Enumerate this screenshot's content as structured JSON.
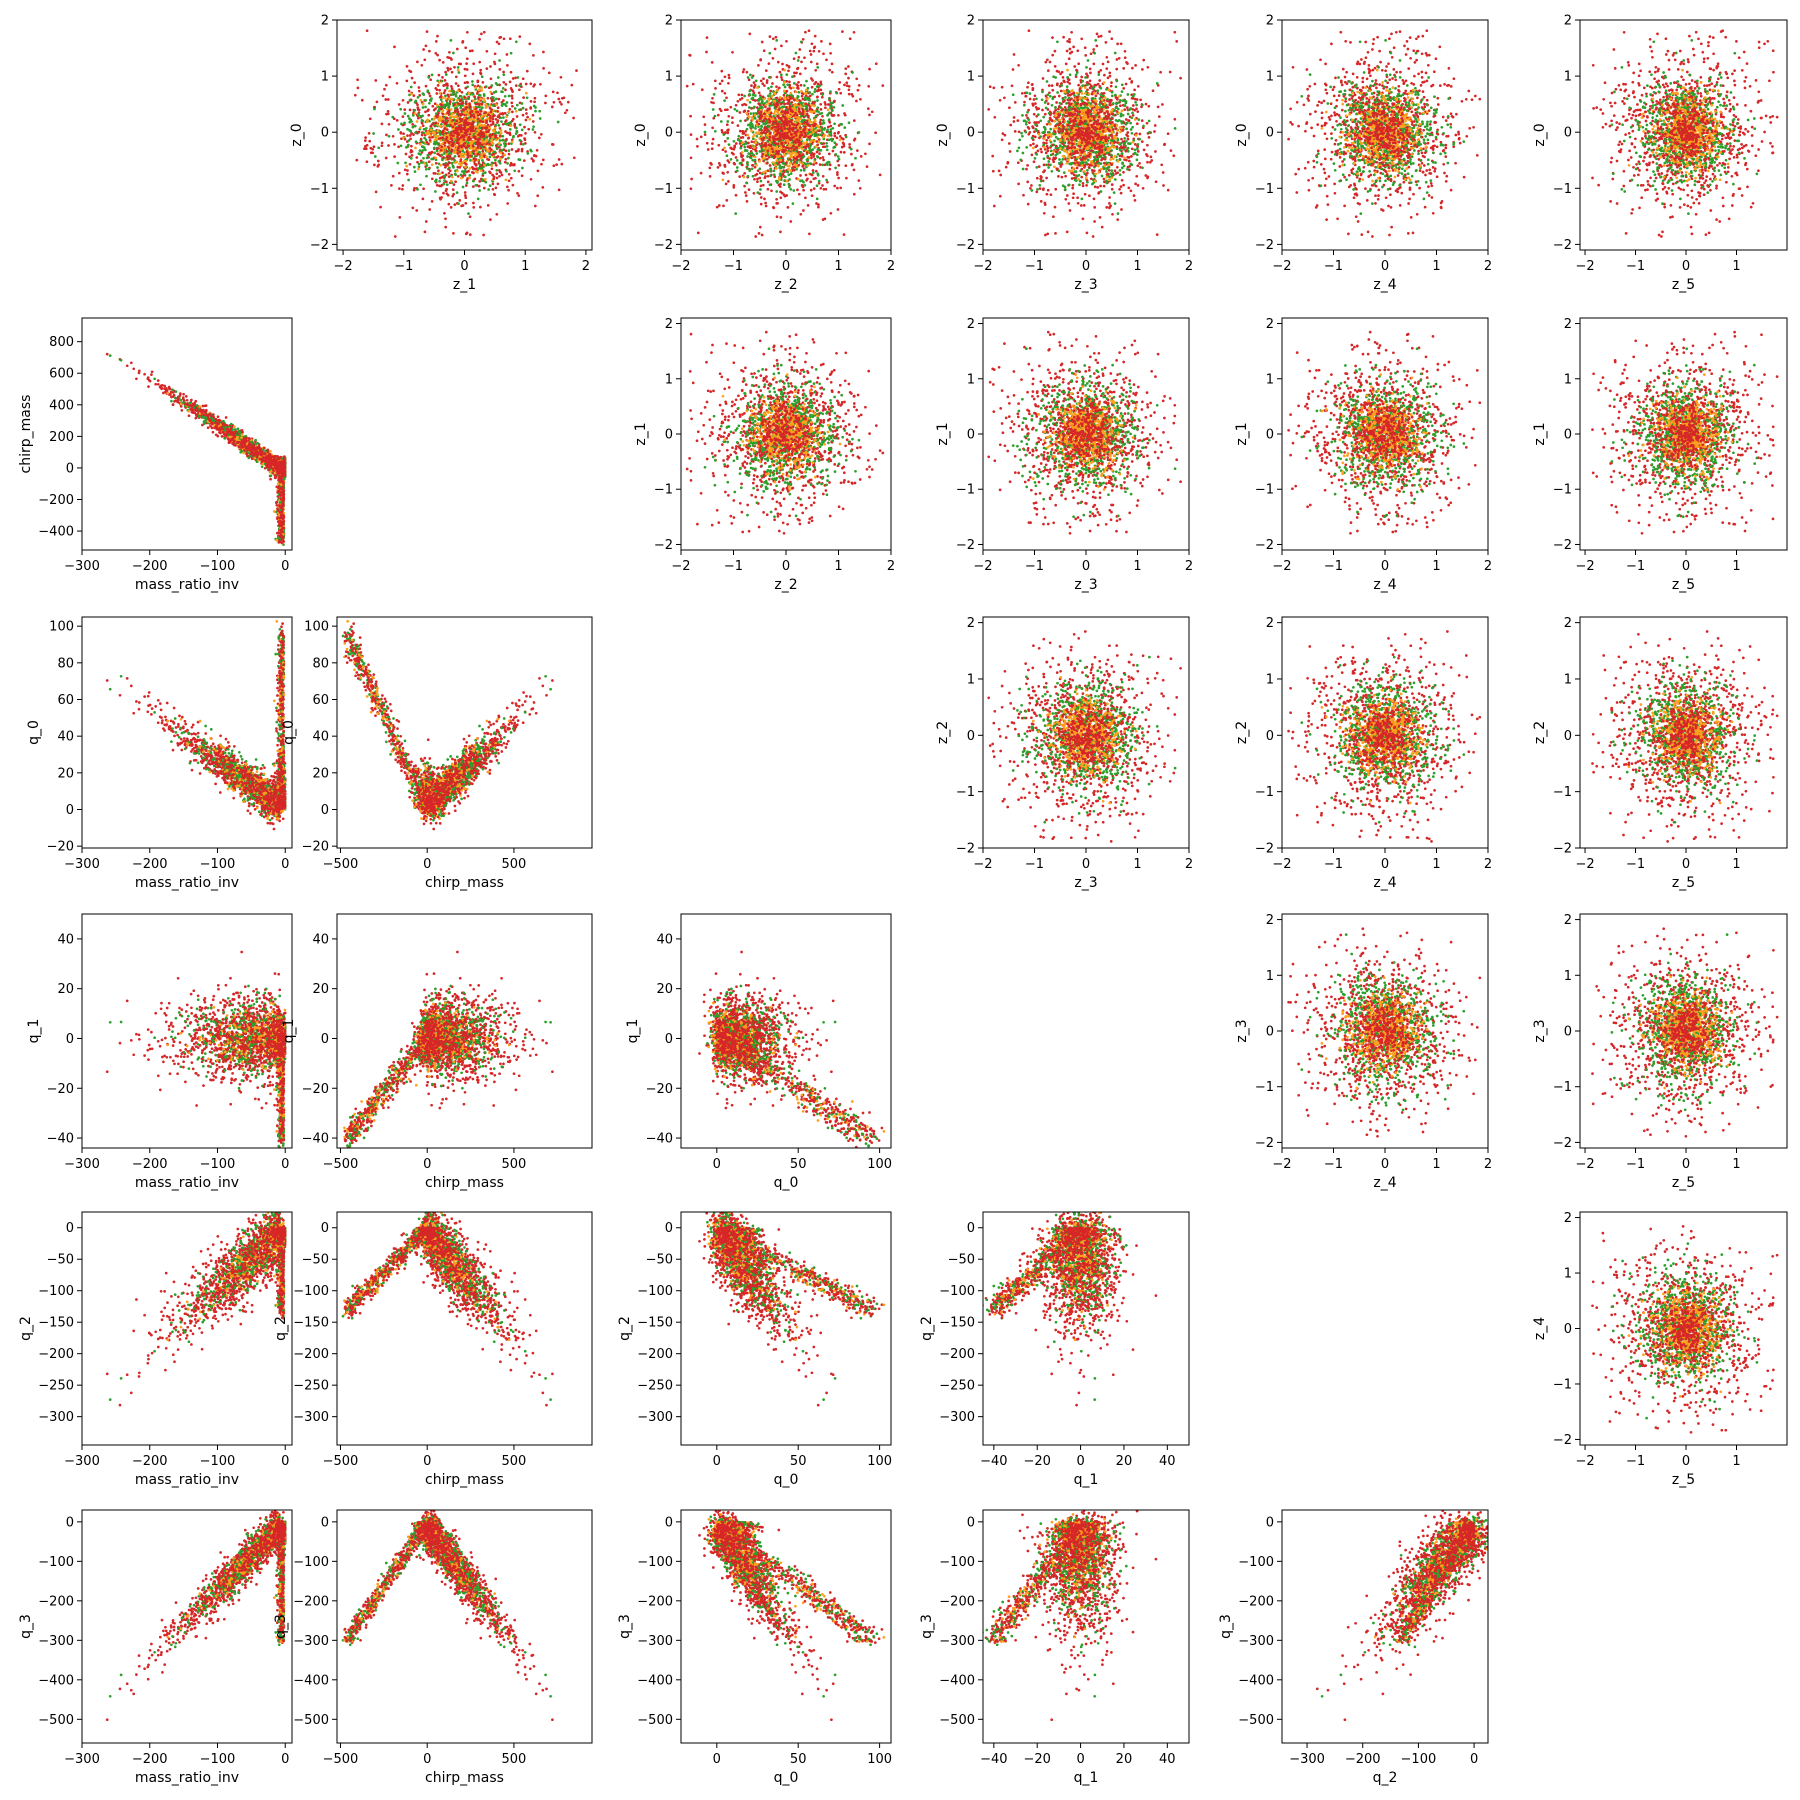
{
  "colors": {
    "scatter_a": "#d62728",
    "scatter_b": "#2ca02c",
    "scatter_c": "#ff9f1c",
    "frame": "#000000",
    "background": "#ffffff"
  },
  "chart_data": [
    {
      "type": "scatter",
      "xlabel": "z_1",
      "ylabel": "z_0",
      "xlim": [
        -2.1,
        2.1
      ],
      "ylim": [
        -2.1,
        2.0
      ],
      "xticks": [
        -2,
        -1,
        0,
        1,
        2
      ],
      "yticks": [
        -2,
        -1,
        0,
        1,
        2
      ]
    },
    {
      "type": "scatter",
      "xlabel": "z_2",
      "ylabel": "z_0",
      "xlim": [
        -2.0,
        2.0
      ],
      "ylim": [
        -2.1,
        2.0
      ],
      "xticks": [
        -2,
        -1,
        0,
        1,
        2
      ],
      "yticks": [
        -2,
        -1,
        0,
        1,
        2
      ]
    },
    {
      "type": "scatter",
      "xlabel": "z_3",
      "ylabel": "z_0",
      "xlim": [
        -2.0,
        2.0
      ],
      "ylim": [
        -2.1,
        2.0
      ],
      "xticks": [
        -2,
        -1,
        0,
        1,
        2
      ],
      "yticks": [
        -2,
        -1,
        0,
        1,
        2
      ]
    },
    {
      "type": "scatter",
      "xlabel": "z_4",
      "ylabel": "z_0",
      "xlim": [
        -2.0,
        2.0
      ],
      "ylim": [
        -2.1,
        2.0
      ],
      "xticks": [
        -2,
        -1,
        0,
        1,
        2
      ],
      "yticks": [
        -2,
        -1,
        0,
        1,
        2
      ]
    },
    {
      "type": "scatter",
      "xlabel": "z_5",
      "ylabel": "z_0",
      "xlim": [
        -2.1,
        2.0
      ],
      "ylim": [
        -2.1,
        2.0
      ],
      "xticks": [
        -2,
        -1,
        0,
        1
      ],
      "yticks": [
        -2,
        -1,
        0,
        1,
        2
      ]
    },
    {
      "type": "scatter",
      "xlabel": "mass_ratio_inv",
      "ylabel": "chirp_mass",
      "xlim": [
        -300,
        10
      ],
      "ylim": [
        -520,
        950
      ],
      "xticks": [
        -300,
        -200,
        -100,
        0
      ],
      "yticks": [
        -400,
        -200,
        0,
        200,
        400,
        600,
        800
      ]
    },
    {
      "type": "scatter",
      "xlabel": "z_2",
      "ylabel": "z_1",
      "xlim": [
        -2.0,
        2.0
      ],
      "ylim": [
        -2.1,
        2.1
      ],
      "xticks": [
        -2,
        -1,
        0,
        1,
        2
      ],
      "yticks": [
        -2,
        -1,
        0,
        1,
        2
      ]
    },
    {
      "type": "scatter",
      "xlabel": "z_3",
      "ylabel": "z_1",
      "xlim": [
        -2.0,
        2.0
      ],
      "ylim": [
        -2.1,
        2.1
      ],
      "xticks": [
        -2,
        -1,
        0,
        1,
        2
      ],
      "yticks": [
        -2,
        -1,
        0,
        1,
        2
      ]
    },
    {
      "type": "scatter",
      "xlabel": "z_4",
      "ylabel": "z_1",
      "xlim": [
        -2.0,
        2.0
      ],
      "ylim": [
        -2.1,
        2.1
      ],
      "xticks": [
        -2,
        -1,
        0,
        1,
        2
      ],
      "yticks": [
        -2,
        -1,
        0,
        1,
        2
      ]
    },
    {
      "type": "scatter",
      "xlabel": "z_5",
      "ylabel": "z_1",
      "xlim": [
        -2.1,
        2.0
      ],
      "ylim": [
        -2.1,
        2.1
      ],
      "xticks": [
        -2,
        -1,
        0,
        1
      ],
      "yticks": [
        -2,
        -1,
        0,
        1,
        2
      ]
    },
    {
      "type": "scatter",
      "xlabel": "mass_ratio_inv",
      "ylabel": "q_0",
      "xlim": [
        -300,
        10
      ],
      "ylim": [
        -21,
        105
      ],
      "xticks": [
        -300,
        -200,
        -100,
        0
      ],
      "yticks": [
        -20,
        0,
        20,
        40,
        60,
        80,
        100
      ]
    },
    {
      "type": "scatter",
      "xlabel": "chirp_mass",
      "ylabel": "q_0",
      "xlim": [
        -520,
        950
      ],
      "ylim": [
        -21,
        105
      ],
      "xticks": [
        -500,
        0,
        500
      ],
      "yticks": [
        -20,
        0,
        20,
        40,
        60,
        80,
        100
      ]
    },
    {
      "type": "scatter",
      "xlabel": "z_3",
      "ylabel": "z_2",
      "xlim": [
        -2.0,
        2.0
      ],
      "ylim": [
        -2.0,
        2.1
      ],
      "xticks": [
        -2,
        -1,
        0,
        1,
        2
      ],
      "yticks": [
        -2,
        -1,
        0,
        1,
        2
      ]
    },
    {
      "type": "scatter",
      "xlabel": "z_4",
      "ylabel": "z_2",
      "xlim": [
        -2.0,
        2.0
      ],
      "ylim": [
        -2.0,
        2.1
      ],
      "xticks": [
        -2,
        -1,
        0,
        1,
        2
      ],
      "yticks": [
        -2,
        -1,
        0,
        1,
        2
      ]
    },
    {
      "type": "scatter",
      "xlabel": "z_5",
      "ylabel": "z_2",
      "xlim": [
        -2.1,
        2.0
      ],
      "ylim": [
        -2.0,
        2.1
      ],
      "xticks": [
        -2,
        -1,
        0,
        1
      ],
      "yticks": [
        -2,
        -1,
        0,
        1,
        2
      ]
    },
    {
      "type": "scatter",
      "xlabel": "mass_ratio_inv",
      "ylabel": "q_1",
      "xlim": [
        -300,
        10
      ],
      "ylim": [
        -44,
        50
      ],
      "xticks": [
        -300,
        -200,
        -100,
        0
      ],
      "yticks": [
        -40,
        -20,
        0,
        20,
        40
      ]
    },
    {
      "type": "scatter",
      "xlabel": "chirp_mass",
      "ylabel": "q_1",
      "xlim": [
        -520,
        950
      ],
      "ylim": [
        -44,
        50
      ],
      "xticks": [
        -500,
        0,
        500
      ],
      "yticks": [
        -40,
        -20,
        0,
        20,
        40
      ]
    },
    {
      "type": "scatter",
      "xlabel": "q_0",
      "ylabel": "q_1",
      "xlim": [
        -22,
        107
      ],
      "ylim": [
        -44,
        50
      ],
      "xticks": [
        0,
        50,
        100
      ],
      "yticks": [
        -40,
        -20,
        0,
        20,
        40
      ]
    },
    {
      "type": "scatter",
      "xlabel": "z_4",
      "ylabel": "z_3",
      "xlim": [
        -2.0,
        2.0
      ],
      "ylim": [
        -2.1,
        2.1
      ],
      "xticks": [
        -2,
        -1,
        0,
        1,
        2
      ],
      "yticks": [
        -2,
        -1,
        0,
        1,
        2
      ]
    },
    {
      "type": "scatter",
      "xlabel": "z_5",
      "ylabel": "z_3",
      "xlim": [
        -2.1,
        2.0
      ],
      "ylim": [
        -2.1,
        2.1
      ],
      "xticks": [
        -2,
        -1,
        0,
        1
      ],
      "yticks": [
        -2,
        -1,
        0,
        1,
        2
      ]
    },
    {
      "type": "scatter",
      "xlabel": "mass_ratio_inv",
      "ylabel": "q_2",
      "xlim": [
        -300,
        10
      ],
      "ylim": [
        -345,
        25
      ],
      "xticks": [
        -300,
        -200,
        -100,
        0
      ],
      "yticks": [
        -300,
        -250,
        -200,
        -150,
        -100,
        -50,
        0
      ]
    },
    {
      "type": "scatter",
      "xlabel": "chirp_mass",
      "ylabel": "q_2",
      "xlim": [
        -520,
        950
      ],
      "ylim": [
        -345,
        25
      ],
      "xticks": [
        -500,
        0,
        500
      ],
      "yticks": [
        -300,
        -250,
        -200,
        -150,
        -100,
        -50,
        0
      ]
    },
    {
      "type": "scatter",
      "xlabel": "q_0",
      "ylabel": "q_2",
      "xlim": [
        -22,
        107
      ],
      "ylim": [
        -345,
        25
      ],
      "xticks": [
        0,
        50,
        100
      ],
      "yticks": [
        -300,
        -250,
        -200,
        -150,
        -100,
        -50,
        0
      ]
    },
    {
      "type": "scatter",
      "xlabel": "q_1",
      "ylabel": "q_2",
      "xlim": [
        -45,
        50
      ],
      "ylim": [
        -345,
        25
      ],
      "xticks": [
        -40,
        -20,
        0,
        20,
        40
      ],
      "yticks": [
        -300,
        -250,
        -200,
        -150,
        -100,
        -50,
        0
      ]
    },
    {
      "type": "scatter",
      "xlabel": "z_5",
      "ylabel": "z_4",
      "xlim": [
        -2.1,
        2.0
      ],
      "ylim": [
        -2.1,
        2.1
      ],
      "xticks": [
        -2,
        -1,
        0,
        1
      ],
      "yticks": [
        -2,
        -1,
        0,
        1,
        2
      ]
    },
    {
      "type": "scatter",
      "xlabel": "mass_ratio_inv",
      "ylabel": "q_3",
      "xlim": [
        -300,
        10
      ],
      "ylim": [
        -560,
        30
      ],
      "xticks": [
        -300,
        -200,
        -100,
        0
      ],
      "yticks": [
        -500,
        -400,
        -300,
        -200,
        -100,
        0
      ]
    },
    {
      "type": "scatter",
      "xlabel": "chirp_mass",
      "ylabel": "q_3",
      "xlim": [
        -520,
        950
      ],
      "ylim": [
        -560,
        30
      ],
      "xticks": [
        -500,
        0,
        500
      ],
      "yticks": [
        -500,
        -400,
        -300,
        -200,
        -100,
        0
      ]
    },
    {
      "type": "scatter",
      "xlabel": "q_0",
      "ylabel": "q_3",
      "xlim": [
        -22,
        107
      ],
      "ylim": [
        -560,
        30
      ],
      "xticks": [
        0,
        50,
        100
      ],
      "yticks": [
        -500,
        -400,
        -300,
        -200,
        -100,
        0
      ]
    },
    {
      "type": "scatter",
      "xlabel": "q_1",
      "ylabel": "q_3",
      "xlim": [
        -45,
        50
      ],
      "ylim": [
        -560,
        30
      ],
      "xticks": [
        -40,
        -20,
        0,
        20,
        40
      ],
      "yticks": [
        -500,
        -400,
        -300,
        -200,
        -100,
        0
      ]
    },
    {
      "type": "scatter",
      "xlabel": "q_2",
      "ylabel": "q_3",
      "xlim": [
        -345,
        25
      ],
      "ylim": [
        -560,
        30
      ],
      "xticks": [
        -300,
        -200,
        -100,
        0
      ],
      "yticks": [
        -500,
        -400,
        -300,
        -200,
        -100,
        0
      ]
    }
  ]
}
